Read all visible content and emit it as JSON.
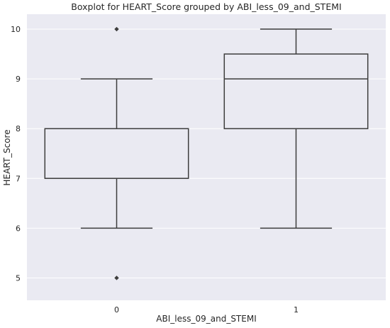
{
  "chart_data": {
    "type": "boxplot",
    "title": "Boxplot for HEART_Score grouped by ABI_less_09_and_STEMI",
    "xlabel": "ABI_less_09_and_STEMI",
    "ylabel": "HEART_Score",
    "categories": [
      "0",
      "1"
    ],
    "ylim": [
      4.55,
      10.3
    ],
    "yticks": [
      5,
      6,
      7,
      8,
      9,
      10
    ],
    "grid": true,
    "boxes": [
      {
        "category": "0",
        "whisker_low": 6,
        "q1": 7,
        "median": 7,
        "q3": 8,
        "whisker_high": 9,
        "outliers": [
          10,
          5
        ],
        "color": "#4471A8"
      },
      {
        "category": "1",
        "whisker_low": 6,
        "q1": 8,
        "median": 9,
        "q3": 9.5,
        "whisker_high": 10,
        "outliers": [],
        "color": "#E08A60"
      }
    ],
    "colors": {
      "background": "#EAEAF2",
      "grid": "#FFFFFF",
      "lines": "#3D3D3D"
    }
  }
}
